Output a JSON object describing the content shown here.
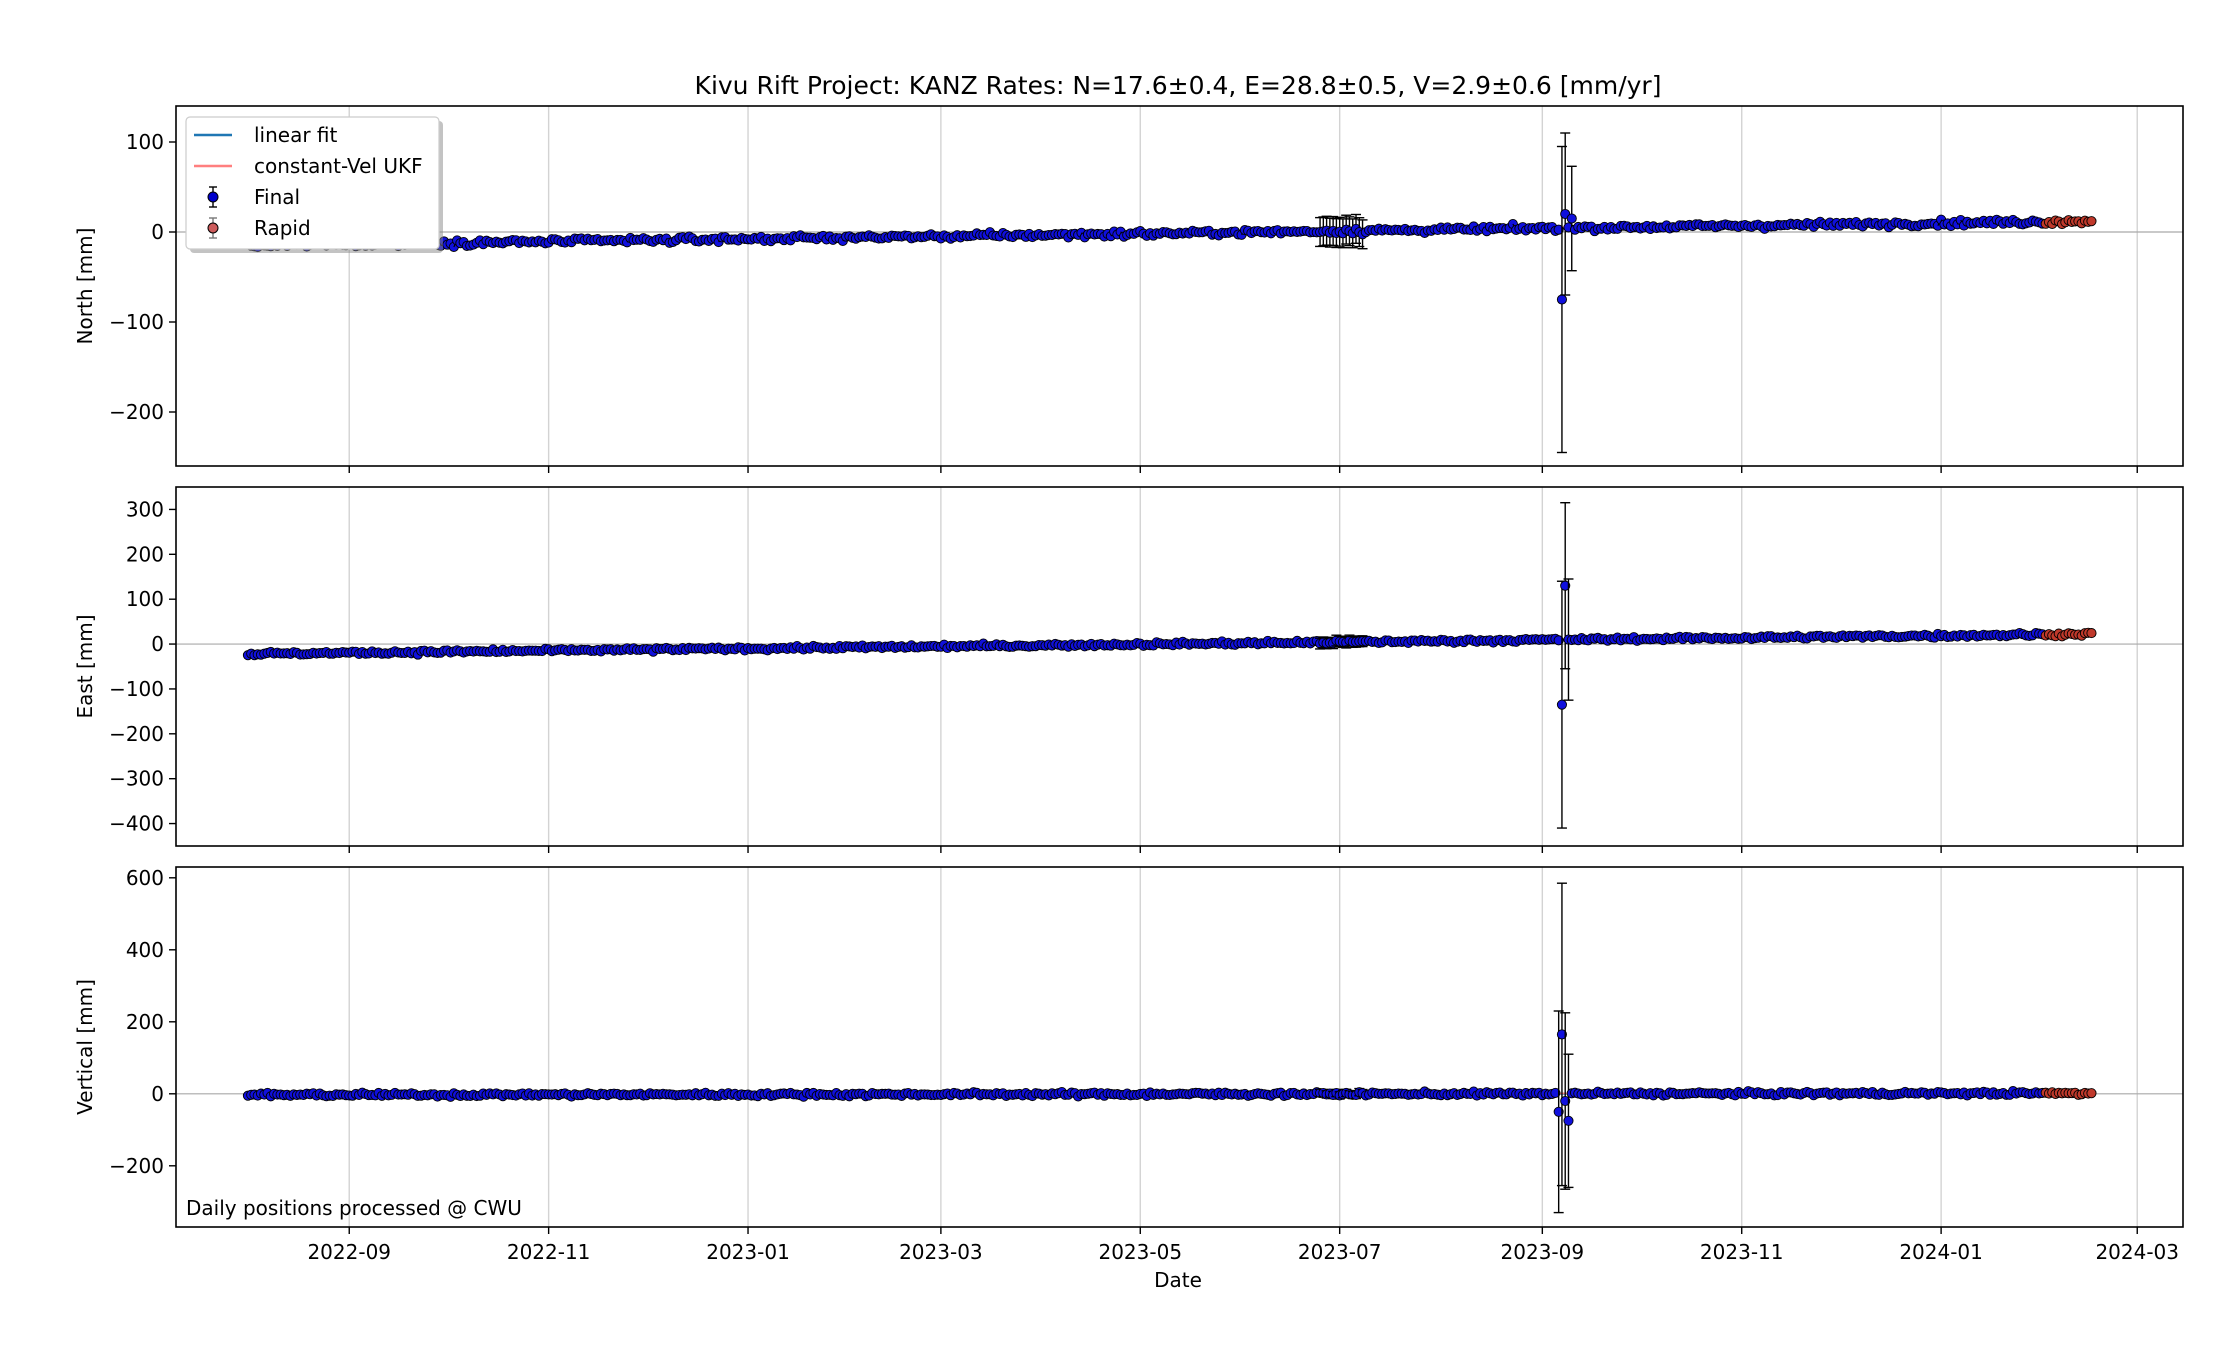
{
  "chart_data": {
    "type": "scatter",
    "title": "Kivu Rift Project: KANZ  Rates: N=17.6±0.4, E=28.8±0.5, V=2.9±0.6 [mm/yr]",
    "xlabel": "Date",
    "note": "Daily positions processed @ CWU",
    "x_range": [
      "2022-07-10",
      "2024-03-15"
    ],
    "x_ticks": [
      "2022-09",
      "2022-11",
      "2023-01",
      "2023-03",
      "2023-05",
      "2023-07",
      "2023-09",
      "2023-11",
      "2024-01",
      "2024-03"
    ],
    "grid": true,
    "legend": {
      "placement": "upper-left",
      "entries": [
        {
          "label": "linear fit",
          "kind": "line",
          "color": "#1f77b4"
        },
        {
          "label": "constant-Vel UKF",
          "kind": "line",
          "color": "#ff7f7f"
        },
        {
          "label": "Final",
          "kind": "errorbar-point",
          "color": "#0000cc"
        },
        {
          "label": "Rapid",
          "kind": "errorbar-point",
          "color": "#cd5c5c"
        }
      ]
    },
    "series_colors": {
      "final_fill": "#1010dd",
      "rapid_fill": "#c0392b",
      "edge": "#000000",
      "errorbar": "#000000"
    },
    "date_start": "2022-08-01",
    "final_end": "2024-02-01",
    "rapid_end": "2024-02-16",
    "panels": [
      {
        "ylabel": "North [mm]",
        "ylim": [
          -260,
          140
        ],
        "yticks": [
          100,
          0,
          -100,
          -200
        ],
        "rate_mm_per_yr": 17.6,
        "value_at_start": -15,
        "scatter": 3,
        "outliers": [
          {
            "date": "2023-09-07",
            "value": -75,
            "err": 170
          },
          {
            "date": "2023-09-08",
            "value": 20,
            "err": 90
          },
          {
            "date": "2023-09-10",
            "value": 15,
            "err": 58
          }
        ],
        "noisy_range": {
          "start": "2023-06-25",
          "end": "2023-07-08",
          "err": 16
        }
      },
      {
        "ylabel": "East [mm]",
        "ylim": [
          -450,
          350
        ],
        "yticks": [
          300,
          200,
          100,
          0,
          -100,
          -200,
          -300,
          -400
        ],
        "rate_mm_per_yr": 28.8,
        "value_at_start": -22,
        "scatter": 4,
        "outliers": [
          {
            "date": "2023-09-07",
            "value": -135,
            "err": 275
          },
          {
            "date": "2023-09-08",
            "value": 130,
            "err": 185
          },
          {
            "date": "2023-09-09",
            "value": 10,
            "err": 135
          }
        ],
        "noisy_range": {
          "start": "2023-06-25",
          "end": "2023-07-08",
          "err": 12
        }
      },
      {
        "ylabel": "Vertical [mm]",
        "ylim": [
          -370,
          630
        ],
        "yticks": [
          600,
          400,
          200,
          0,
          -200
        ],
        "rate_mm_per_yr": 2.9,
        "value_at_start": -3,
        "scatter": 5,
        "outliers": [
          {
            "date": "2023-09-06",
            "value": -50,
            "err": 280
          },
          {
            "date": "2023-09-07",
            "value": 165,
            "err": 420
          },
          {
            "date": "2023-09-08",
            "value": -20,
            "err": 245
          },
          {
            "date": "2023-09-09",
            "value": -75,
            "err": 185
          }
        ],
        "noisy_range": {
          "start": "2023-06-25",
          "end": "2023-07-08",
          "err": 10
        }
      }
    ]
  }
}
